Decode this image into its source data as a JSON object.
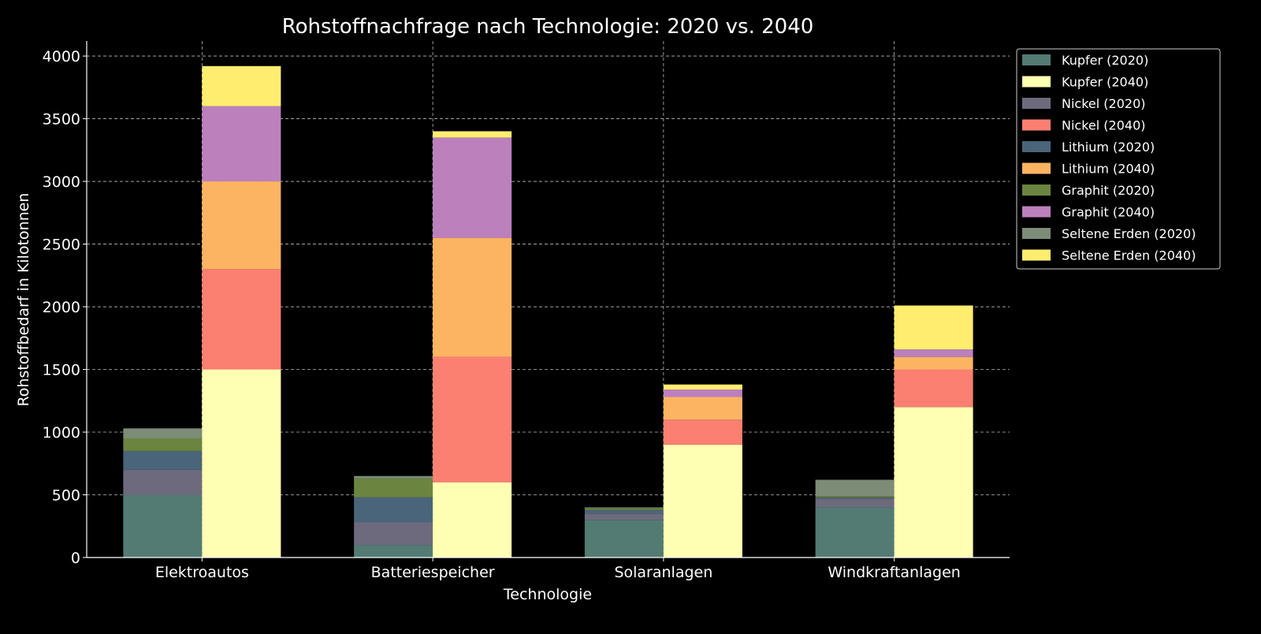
{
  "chart_data": {
    "type": "bar",
    "stacked": true,
    "title": "Rohstoffnachfrage nach Technologie: 2020 vs. 2040",
    "xlabel": "Technologie",
    "ylabel": "Rohstoffbedarf in Kilotonnen",
    "ylim": [
      0,
      4120
    ],
    "yticks": [
      0,
      500,
      1000,
      1500,
      2000,
      2500,
      3000,
      3500,
      4000
    ],
    "grid": true,
    "legend_position": "outside-right-top",
    "categories": [
      "Elektroautos",
      "Batteriespeicher",
      "Solaranlagen",
      "Windkraftanlagen"
    ],
    "groups": [
      {
        "year": "2020",
        "series": [
          {
            "name": "Kupfer (2020)",
            "color": "#537b73",
            "values": [
              500,
              100,
              300,
              400
            ]
          },
          {
            "name": "Nickel (2020)",
            "color": "#6e6a7e",
            "values": [
              200,
              180,
              50,
              70
            ]
          },
          {
            "name": "Lithium (2020)",
            "color": "#4a657a",
            "values": [
              150,
              200,
              30,
              10
            ]
          },
          {
            "name": "Graphit (2020)",
            "color": "#6b8540",
            "values": [
              100,
              150,
              15,
              10
            ]
          },
          {
            "name": "Seltene Erden (2020)",
            "color": "#7c8c76",
            "values": [
              80,
              20,
              5,
              130
            ]
          }
        ]
      },
      {
        "year": "2040",
        "series": [
          {
            "name": "Kupfer (2040)",
            "color": "#ffffb3",
            "values": [
              1500,
              600,
              900,
              1200
            ]
          },
          {
            "name": "Nickel (2040)",
            "color": "#fb8072",
            "values": [
              800,
              1000,
              200,
              300
            ]
          },
          {
            "name": "Lithium (2040)",
            "color": "#fdb462",
            "values": [
              700,
              950,
              180,
              100
            ]
          },
          {
            "name": "Graphit (2040)",
            "color": "#bc80bd",
            "values": [
              600,
              800,
              60,
              60
            ]
          },
          {
            "name": "Seltene Erden (2040)",
            "color": "#ffed6f",
            "values": [
              320,
              50,
              40,
              350
            ]
          }
        ]
      }
    ],
    "legend_order": [
      "Kupfer (2020)",
      "Kupfer (2040)",
      "Nickel (2020)",
      "Nickel (2040)",
      "Lithium (2020)",
      "Lithium (2040)",
      "Graphit (2020)",
      "Graphit (2040)",
      "Seltene Erden (2020)",
      "Seltene Erden (2040)"
    ]
  }
}
